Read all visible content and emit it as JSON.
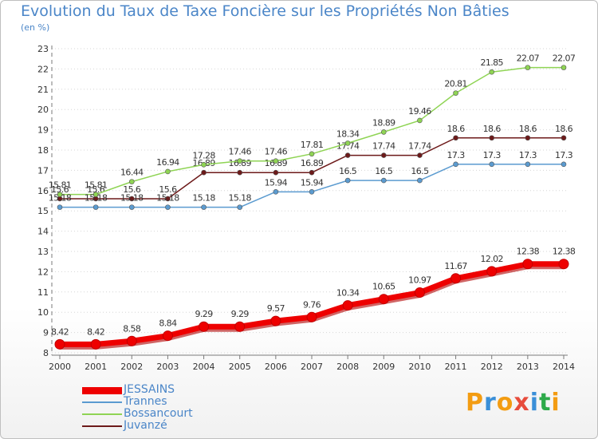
{
  "header": {
    "title": "Evolution du Taux de Taxe Foncière sur les Propriétés Non Bâties",
    "unit": "(en %)"
  },
  "logo": {
    "text": "Proxiti",
    "letters": [
      "P",
      "r",
      "o",
      "x",
      "i",
      "t",
      "i"
    ],
    "colors": [
      "#f39c12",
      "#3a8fd8",
      "#f39c12",
      "#e74c3c",
      "#3a8fd8",
      "#2eaa4a",
      "#f39c12"
    ]
  },
  "chart_data": {
    "type": "line",
    "x": [
      "2000",
      "2001",
      "2002",
      "2003",
      "2004",
      "2005",
      "2006",
      "2007",
      "2008",
      "2009",
      "2010",
      "2011",
      "2012",
      "2013",
      "2014"
    ],
    "ylim": [
      8,
      23
    ],
    "yticks": [
      "8",
      "9",
      "10",
      "11",
      "12",
      "13",
      "14",
      "15",
      "16",
      "17",
      "18",
      "19",
      "20",
      "21",
      "22",
      "23"
    ],
    "grid": "horizontal dotted",
    "legend": "bottom-left",
    "series": [
      {
        "name": "Juvanzé",
        "color": "#6d1a1a",
        "width": 1.5,
        "values": [
          15.6,
          15.6,
          15.6,
          15.6,
          16.89,
          16.89,
          16.89,
          16.89,
          17.74,
          17.74,
          17.74,
          18.6,
          18.6,
          18.6,
          18.6
        ],
        "labels": [
          "15.6",
          "15.6",
          "15.6",
          "15.6",
          "16.89",
          "16.89",
          "16.89",
          "16.89",
          "17.74",
          "17.74",
          "17.74",
          "18.6",
          "18.6",
          "18.6",
          "18.6"
        ]
      },
      {
        "name": "Bossancourt",
        "color": "#8fd454",
        "width": 1.5,
        "values": [
          15.81,
          15.81,
          16.44,
          16.94,
          17.28,
          17.46,
          17.46,
          17.81,
          18.34,
          18.89,
          19.46,
          20.81,
          21.85,
          22.07,
          22.07
        ],
        "labels": [
          "15.81",
          "15.81",
          "16.44",
          "16.94",
          "17.28",
          "17.46",
          "17.46",
          "17.81",
          "18.34",
          "18.89",
          "19.46",
          "20.81",
          "21.85",
          "22.07",
          "22.07"
        ]
      },
      {
        "name": "Trannes",
        "color": "#5b9bd0",
        "width": 1.5,
        "values": [
          15.18,
          15.18,
          15.18,
          15.18,
          15.18,
          15.18,
          15.94,
          15.94,
          16.5,
          16.5,
          16.5,
          17.3,
          17.3,
          17.3,
          17.3
        ],
        "labels": [
          "15.18",
          "15.18",
          "15.18",
          "15.18",
          "15.18",
          "15.18",
          "15.94",
          "15.94",
          "16.5",
          "16.5",
          "16.5",
          "17.3",
          "17.3",
          "17.3",
          "17.3"
        ]
      },
      {
        "name": "JESSAINS",
        "color": "#ee0000",
        "width": 7,
        "values": [
          8.42,
          8.42,
          8.58,
          8.84,
          9.29,
          9.29,
          9.57,
          9.76,
          10.34,
          10.65,
          10.97,
          11.67,
          12.02,
          12.38,
          12.38
        ],
        "labels": [
          "8.42",
          "8.42",
          "8.58",
          "8.84",
          "9.29",
          "9.29",
          "9.57",
          "9.76",
          "10.34",
          "10.65",
          "10.97",
          "11.67",
          "12.02",
          "12.38",
          "12.38"
        ]
      }
    ],
    "legend_order": [
      "JESSAINS",
      "Trannes",
      "Bossancourt",
      "Juvanzé"
    ]
  }
}
